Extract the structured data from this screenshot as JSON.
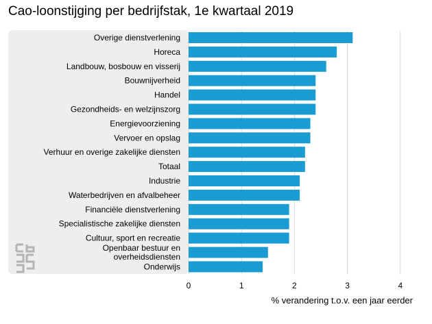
{
  "chart_data": {
    "type": "bar",
    "orientation": "horizontal",
    "title": "Cao-loonstijging per bedrijfstak, 1e kwartaal 2019",
    "xlabel": "% verandering t.o.v. een jaar eerder",
    "ylabel": "",
    "xlim": [
      0,
      4
    ],
    "xticks": [
      "0",
      "1",
      "2",
      "3",
      "4"
    ],
    "grid": true,
    "bar_color": "#1a9bd1",
    "categories": [
      [
        "Overige dienstverlening"
      ],
      [
        "Horeca"
      ],
      [
        "Landbouw, bosbouw en visserij"
      ],
      [
        "Bouwnijverheid"
      ],
      [
        "Handel"
      ],
      [
        "Gezondheids- en welzijnszorg"
      ],
      [
        "Energievoorziening"
      ],
      [
        "Vervoer en opslag"
      ],
      [
        "Verhuur en overige zakelijke diensten"
      ],
      [
        "Totaal"
      ],
      [
        "Industrie"
      ],
      [
        "Waterbedrijven en afvalbeheer"
      ],
      [
        "Financiële dienstverlening"
      ],
      [
        "Specialistische zakelijke diensten"
      ],
      [
        "Cultuur, sport en recreatie"
      ],
      [
        "Openbaar bestuur en",
        "overheidsdiensten"
      ],
      [
        "Onderwijs"
      ]
    ],
    "values": [
      3.1,
      2.8,
      2.6,
      2.4,
      2.4,
      2.4,
      2.3,
      2.3,
      2.2,
      2.2,
      2.1,
      2.1,
      1.9,
      1.9,
      1.9,
      1.5,
      1.4
    ]
  },
  "logo": {
    "name": "cbs",
    "colors": [
      "#b4b4b4"
    ]
  }
}
